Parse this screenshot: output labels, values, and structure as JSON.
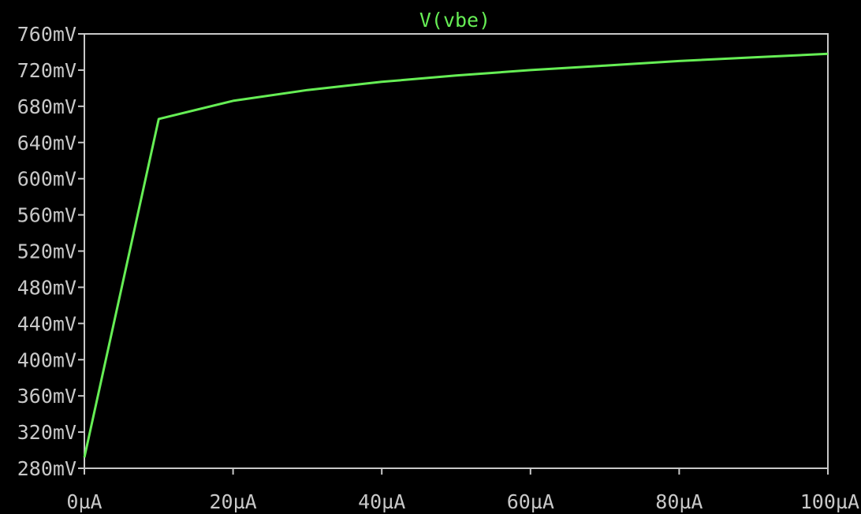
{
  "chart_data": {
    "type": "line",
    "title": "V(vbe)",
    "xlabel": "",
    "ylabel": "",
    "x_unit": "µA",
    "y_unit": "mV",
    "xlim": [
      0,
      100
    ],
    "ylim": [
      280,
      760
    ],
    "x_ticks": [
      0,
      20,
      40,
      60,
      80,
      100
    ],
    "y_ticks": [
      280,
      320,
      360,
      400,
      440,
      480,
      520,
      560,
      600,
      640,
      680,
      720,
      760
    ],
    "x_tick_labels": [
      "0µA",
      "20µA",
      "40µA",
      "60µA",
      "80µA",
      "100µA"
    ],
    "y_tick_labels": [
      "280mV",
      "320mV",
      "360mV",
      "400mV",
      "440mV",
      "480mV",
      "520mV",
      "560mV",
      "600mV",
      "640mV",
      "680mV",
      "720mV",
      "760mV"
    ],
    "grid": false,
    "series": [
      {
        "name": "V(vbe)",
        "color": "#66ee55",
        "x": [
          0,
          10,
          20,
          30,
          40,
          50,
          60,
          70,
          80,
          90,
          100
        ],
        "y": [
          292,
          666,
          686,
          698,
          707,
          714,
          720,
          725,
          730,
          734,
          738
        ]
      }
    ]
  },
  "colors": {
    "background": "#000000",
    "axes": "#c8c8c8",
    "trace": "#66ee55"
  }
}
